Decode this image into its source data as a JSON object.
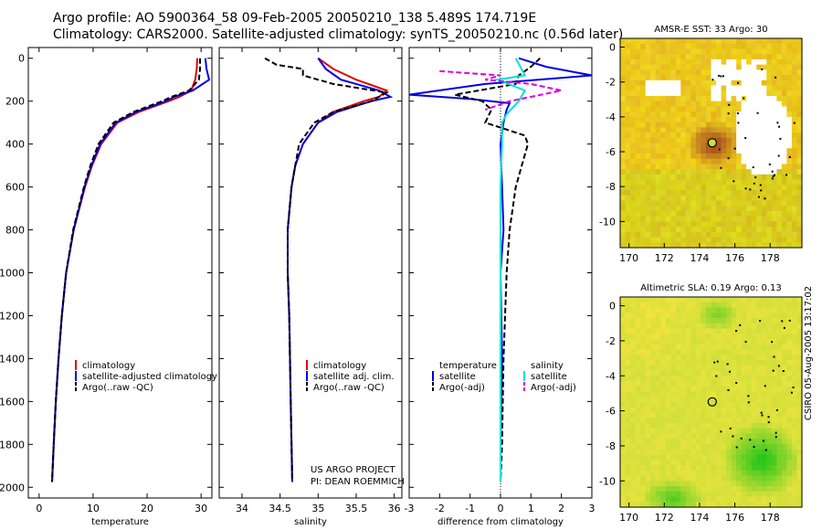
{
  "header": {
    "title_line1": "Argo profile: AO 5900364_58 09-Feb-2005 20050210_138 5.489S 174.719E",
    "title_line2": "Climatology: CARS2000. Satellite-adjusted climatology: synTS_20050210.nc (0.56d later)"
  },
  "side_text": "CSIRO 05-Aug-2005 13:17:02",
  "colors": {
    "climatology": "#e00000",
    "satellite": "#0000e0",
    "argo": "#000000",
    "sal_satellite": "#00e0e0",
    "sal_argo": "#e000e0"
  },
  "chart_data": [
    {
      "id": "temperature",
      "type": "line",
      "xlabel": "temperature",
      "xlim": [
        -2,
        32
      ],
      "xticks": [
        0,
        10,
        20,
        30
      ],
      "tick_labels": [
        "0",
        "10",
        "20",
        "30"
      ],
      "ylim": [
        2050,
        -50
      ],
      "yticks": [
        0,
        200,
        400,
        600,
        800,
        1000,
        1200,
        1400,
        1600,
        1800,
        2000
      ],
      "ytick_labels": [
        "0",
        "200",
        "400",
        "600",
        "800",
        "1000",
        "1200",
        "1400",
        "1600",
        "1800",
        "2000"
      ],
      "legend": [
        "climatology",
        "satellite-adjusted climatology",
        "Argo(..raw -QC)"
      ],
      "series": [
        {
          "name": "climatology",
          "color": "#e00000",
          "depth": [
            0,
            50,
            100,
            150,
            180,
            200,
            250,
            300,
            400,
            500,
            600,
            800,
            1000,
            1200,
            1400,
            1600,
            1800,
            1975
          ],
          "values": [
            29.3,
            29.2,
            28.9,
            28.2,
            26.0,
            24.0,
            18.5,
            14.5,
            11.5,
            9.8,
            8.5,
            6.4,
            5.0,
            4.2,
            3.6,
            3.1,
            2.7,
            2.4
          ]
        },
        {
          "name": "satellite",
          "color": "#0000e0",
          "depth": [
            0,
            50,
            100,
            150,
            180,
            200,
            250,
            300,
            400,
            500,
            600,
            800,
            1000,
            1200,
            1400,
            1600,
            1800,
            1975
          ],
          "values": [
            30.8,
            31.0,
            31.5,
            28.5,
            25.0,
            23.5,
            18.0,
            14.2,
            11.3,
            9.7,
            8.4,
            6.4,
            5.0,
            4.2,
            3.6,
            3.1,
            2.7,
            2.4
          ]
        },
        {
          "name": "argo",
          "color": "#000000",
          "dashed": true,
          "depth": [
            0,
            50,
            100,
            150,
            180,
            200,
            250,
            300,
            400,
            500,
            600,
            800,
            1000,
            1200,
            1400,
            1600,
            1800,
            1975
          ],
          "values": [
            29.8,
            29.8,
            29.6,
            27.8,
            24.5,
            22.8,
            17.5,
            13.8,
            11.0,
            9.5,
            8.3,
            6.3,
            5.0,
            4.2,
            3.6,
            3.1,
            2.7,
            2.4
          ]
        }
      ]
    },
    {
      "id": "salinity",
      "type": "line",
      "xlabel": "salinity",
      "xlim": [
        33.7,
        36.1
      ],
      "xticks": [
        34,
        34.5,
        35,
        35.5,
        36
      ],
      "tick_labels": [
        "34",
        "34.5",
        "35",
        "35.5",
        "36"
      ],
      "ylim": [
        2050,
        -50
      ],
      "legend": [
        "climatology",
        "satellite adj. clim.",
        "Argo(..raw -QC)"
      ],
      "annotation": [
        "US ARGO PROJECT",
        "PI: DEAN ROEMMICH"
      ],
      "series": [
        {
          "name": "climatology",
          "color": "#e00000",
          "depth": [
            0,
            50,
            100,
            150,
            180,
            200,
            250,
            300,
            400,
            500,
            600,
            800,
            1000,
            1200,
            1400,
            1600,
            1800,
            1975
          ],
          "values": [
            35.0,
            35.2,
            35.5,
            35.9,
            35.8,
            35.6,
            35.2,
            35.0,
            34.8,
            34.7,
            34.65,
            34.6,
            34.6,
            34.62,
            34.63,
            34.64,
            34.65,
            34.66
          ]
        },
        {
          "name": "satellite",
          "color": "#0000e0",
          "depth": [
            0,
            50,
            100,
            150,
            180,
            200,
            250,
            300,
            400,
            500,
            600,
            800,
            1000,
            1200,
            1400,
            1600,
            1800,
            1975
          ],
          "values": [
            35.0,
            35.1,
            35.3,
            35.8,
            35.95,
            35.7,
            35.25,
            35.0,
            34.8,
            34.7,
            34.65,
            34.6,
            34.6,
            34.62,
            34.63,
            34.64,
            34.65,
            34.66
          ]
        },
        {
          "name": "argo",
          "color": "#000000",
          "dashed": true,
          "depth": [
            0,
            30,
            50,
            80,
            120,
            160,
            200,
            250,
            300,
            400,
            500,
            600,
            800,
            1000,
            1200,
            1400,
            1600,
            1800,
            1975
          ],
          "values": [
            34.3,
            34.45,
            34.8,
            34.8,
            35.2,
            35.9,
            35.7,
            35.2,
            34.95,
            34.75,
            34.7,
            34.65,
            34.6,
            34.6,
            34.62,
            34.63,
            34.64,
            34.65,
            34.66
          ]
        }
      ]
    },
    {
      "id": "difference",
      "type": "line",
      "xlabel": "difference from climatology",
      "xlim": [
        -3,
        3
      ],
      "xticks": [
        -3,
        -2,
        -1,
        0,
        1,
        2,
        3
      ],
      "tick_labels": [
        "-3",
        "-2",
        "-1",
        "0",
        "1",
        "2",
        "3"
      ],
      "ylim": [
        2050,
        -50
      ],
      "legend_left": [
        "temperature",
        "satellite",
        "Argo(-adj)"
      ],
      "legend_right": [
        "salinity",
        "satellite",
        "Argo(-adj)"
      ],
      "series": [
        {
          "name": "temp-satellite",
          "color": "#0000e0",
          "depth": [
            0,
            40,
            80,
            120,
            170,
            190,
            210,
            240,
            300,
            400,
            600,
            800,
            1000,
            1400,
            1800,
            1975
          ],
          "values": [
            0.6,
            1.5,
            3.0,
            -0.5,
            -3.0,
            -1.0,
            0.3,
            0.2,
            0.1,
            0.0,
            0.05,
            0.1,
            0.0,
            0.05,
            0.0,
            0.0
          ]
        },
        {
          "name": "temp-argo",
          "color": "#000000",
          "dashed": true,
          "depth": [
            0,
            40,
            80,
            120,
            170,
            200,
            240,
            300,
            360,
            400,
            500,
            600,
            800,
            1000,
            1400,
            1800,
            1975
          ],
          "values": [
            1.3,
            1.0,
            0.6,
            0.5,
            -1.5,
            -0.6,
            -0.3,
            -0.5,
            0.8,
            0.9,
            0.7,
            0.5,
            0.3,
            0.2,
            0.1,
            0.05,
            0.0
          ]
        },
        {
          "name": "sal-satellite",
          "color": "#00e0e0",
          "depth": [
            0,
            80,
            100,
            150,
            200,
            260,
            300,
            400,
            600,
            800,
            1000,
            1400,
            1800,
            1975
          ],
          "values": [
            0.5,
            0.8,
            -0.1,
            0.8,
            0.6,
            0.2,
            0.05,
            0.05,
            0.0,
            0.0,
            0.0,
            0.0,
            0.0,
            0.0
          ]
        },
        {
          "name": "sal-argo",
          "color": "#e000e0",
          "dashed": true,
          "depth": [
            60,
            80,
            100,
            120,
            150,
            180,
            200,
            240
          ],
          "values": [
            -2.0,
            0.0,
            -0.5,
            1.0,
            2.0,
            1.0,
            0.3,
            -0.5
          ]
        }
      ]
    },
    {
      "id": "sst_map",
      "type": "heatmap",
      "title": "AMSR-E SST: 33 Argo: 30",
      "xlim": [
        169.5,
        179.8
      ],
      "ylim": [
        -11.5,
        0.5
      ],
      "xticks": [
        170,
        172,
        174,
        176,
        178
      ],
      "xtick_labels": [
        "170",
        "172",
        "174",
        "176",
        "178"
      ],
      "yticks": [
        0,
        -2,
        -4,
        -6,
        -8,
        -10
      ],
      "ytick_labels": [
        "0",
        "-2",
        "-4",
        "-6",
        "-8",
        "-10"
      ],
      "marker": [
        174.719,
        -5.489
      ]
    },
    {
      "id": "sla_map",
      "type": "heatmap",
      "title": "Altimetric SLA: 0.19 Argo: 0.13",
      "xlim": [
        169.5,
        179.8
      ],
      "ylim": [
        -11.5,
        0.5
      ],
      "xticks": [
        170,
        172,
        174,
        176,
        178
      ],
      "xtick_labels": [
        "170",
        "172",
        "174",
        "176",
        "178"
      ],
      "yticks": [
        0,
        -2,
        -4,
        -6,
        -8,
        -10
      ],
      "ytick_labels": [
        "0",
        "-2",
        "-4",
        "-6",
        "-8",
        "-10"
      ],
      "marker": [
        174.719,
        -5.489
      ]
    }
  ]
}
